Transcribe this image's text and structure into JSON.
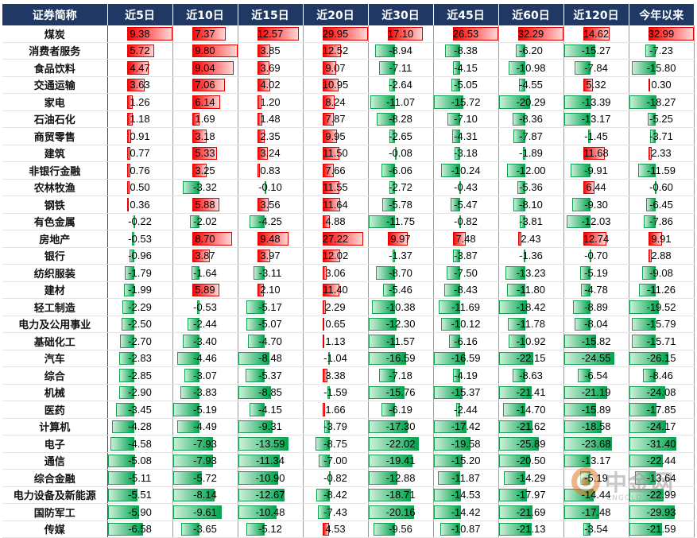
{
  "chart_data": {
    "type": "table",
    "columns": [
      "证券简称",
      "近5日",
      "近10日",
      "近15日",
      "近20日",
      "近30日",
      "近45日",
      "近60日",
      "近120日",
      "今年以来"
    ],
    "rows": [
      {
        "name": "煤炭",
        "values": [
          9.38,
          7.37,
          12.57,
          29.95,
          17.1,
          26.53,
          32.29,
          14.62,
          32.99
        ]
      },
      {
        "name": "消费者服务",
        "values": [
          5.72,
          9.8,
          3.85,
          12.52,
          -8.94,
          -8.38,
          -6.2,
          -15.27,
          -7.23
        ]
      },
      {
        "name": "食品饮料",
        "values": [
          4.47,
          9.04,
          3.69,
          9.07,
          -7.11,
          -4.15,
          -10.98,
          -7.84,
          -15.8
        ]
      },
      {
        "name": "交通运输",
        "values": [
          3.63,
          7.06,
          4.02,
          10.95,
          -2.64,
          -5.05,
          -4.55,
          5.32,
          0.3
        ]
      },
      {
        "name": "家电",
        "values": [
          1.26,
          6.14,
          1.2,
          8.24,
          -11.07,
          -15.72,
          -20.29,
          -13.39,
          -18.27
        ]
      },
      {
        "name": "石油石化",
        "values": [
          1.18,
          1.69,
          1.48,
          7.87,
          -8.28,
          -7.1,
          -8.36,
          -13.17,
          -5.25
        ]
      },
      {
        "name": "商贸零售",
        "values": [
          0.91,
          3.18,
          2.35,
          9.95,
          -2.65,
          -4.31,
          -7.87,
          -1.45,
          -3.71
        ]
      },
      {
        "name": "建筑",
        "values": [
          0.77,
          5.33,
          3.24,
          11.5,
          -0.08,
          -3.18,
          -1.89,
          11.68,
          2.33
        ]
      },
      {
        "name": "非银行金融",
        "values": [
          0.76,
          3.25,
          0.83,
          7.66,
          -6.06,
          -10.24,
          -12.0,
          -9.91,
          -11.59
        ]
      },
      {
        "name": "农林牧渔",
        "values": [
          0.5,
          -3.32,
          -0.1,
          11.55,
          -2.72,
          -0.43,
          -5.36,
          6.44,
          -0.6
        ]
      },
      {
        "name": "钢铁",
        "values": [
          0.36,
          5.88,
          3.56,
          11.64,
          -5.78,
          -5.47,
          -8.1,
          -9.3,
          -6.45
        ]
      },
      {
        "name": "有色金属",
        "values": [
          -0.22,
          -2.02,
          -4.25,
          4.88,
          -11.75,
          -0.82,
          -3.81,
          -12.03,
          -7.86
        ]
      },
      {
        "name": "房地产",
        "values": [
          -0.53,
          8.7,
          9.48,
          27.22,
          9.97,
          7.48,
          2.43,
          12.74,
          9.91
        ]
      },
      {
        "name": "银行",
        "values": [
          -0.96,
          3.87,
          3.97,
          12.02,
          -1.37,
          -3.87,
          -1.36,
          -0.7,
          2.88
        ]
      },
      {
        "name": "纺织服装",
        "values": [
          -1.79,
          -1.64,
          -3.11,
          3.06,
          -8.7,
          -7.5,
          -13.23,
          -5.19,
          -9.08
        ]
      },
      {
        "name": "建材",
        "values": [
          -1.99,
          5.89,
          2.1,
          11.4,
          -5.46,
          -8.43,
          -11.8,
          -4.78,
          -11.26
        ]
      },
      {
        "name": "轻工制造",
        "values": [
          -2.29,
          -0.53,
          -5.17,
          2.29,
          -10.38,
          -11.69,
          -18.42,
          -8.89,
          -19.52
        ]
      },
      {
        "name": "电力及公用事业",
        "values": [
          -2.5,
          -2.44,
          -5.07,
          0.65,
          -12.3,
          -10.12,
          -11.78,
          -8.04,
          -15.79
        ]
      },
      {
        "name": "基础化工",
        "values": [
          -2.7,
          -3.4,
          -4.7,
          1.13,
          -11.57,
          -6.16,
          -10.92,
          -15.82,
          -15.71
        ]
      },
      {
        "name": "汽车",
        "values": [
          -2.83,
          -4.46,
          -8.48,
          -1.04,
          -16.59,
          -16.59,
          -22.15,
          -24.55,
          -26.15
        ]
      },
      {
        "name": "综合",
        "values": [
          -2.85,
          -3.07,
          -5.37,
          3.38,
          -7.18,
          -4.19,
          -8.63,
          -6.54,
          -8.46
        ]
      },
      {
        "name": "机械",
        "values": [
          -2.9,
          -3.83,
          -8.85,
          -1.59,
          -15.76,
          -15.37,
          -21.41,
          -21.19,
          -24.08
        ]
      },
      {
        "name": "医药",
        "values": [
          -3.45,
          -5.19,
          -4.15,
          1.66,
          -6.19,
          -2.44,
          -14.7,
          -15.89,
          -17.85
        ]
      },
      {
        "name": "计算机",
        "values": [
          -4.28,
          -4.49,
          -9.31,
          -3.79,
          -17.3,
          -17.42,
          -21.62,
          -18.58,
          -24.17
        ]
      },
      {
        "name": "电子",
        "values": [
          -4.58,
          -7.93,
          -13.59,
          -8.75,
          -22.02,
          -19.58,
          -25.89,
          -23.68,
          -31.4
        ]
      },
      {
        "name": "通信",
        "values": [
          -5.08,
          -7.93,
          -11.34,
          -7.0,
          -19.41,
          -15.2,
          -20.5,
          -13.17,
          -22.44
        ]
      },
      {
        "name": "综合金融",
        "values": [
          -5.11,
          -5.72,
          -10.9,
          -0.82,
          -12.88,
          -11.87,
          -14.29,
          -5.19,
          -13.64
        ]
      },
      {
        "name": "电力设备及新能源",
        "values": [
          -5.51,
          -8.14,
          -12.67,
          -8.42,
          -18.71,
          -14.53,
          -17.97,
          -14.44,
          -22.99
        ]
      },
      {
        "name": "国防军工",
        "values": [
          -5.9,
          -9.61,
          -10.48,
          -7.43,
          -20.16,
          -14.42,
          -21.69,
          -17.48,
          -29.93
        ]
      },
      {
        "name": "传媒",
        "values": [
          -6.58,
          -3.65,
          -5.12,
          4.53,
          -9.56,
          -10.87,
          -21.13,
          -3.54,
          -21.59
        ]
      }
    ]
  },
  "colors": {
    "header_bg": "#1f3864",
    "positive": "#ff0000",
    "negative": "#00a64f"
  },
  "watermark": {
    "text": "中金网",
    "subtext": "CNGOLD.ORG",
    "icon": "cngold-logo-icon"
  }
}
